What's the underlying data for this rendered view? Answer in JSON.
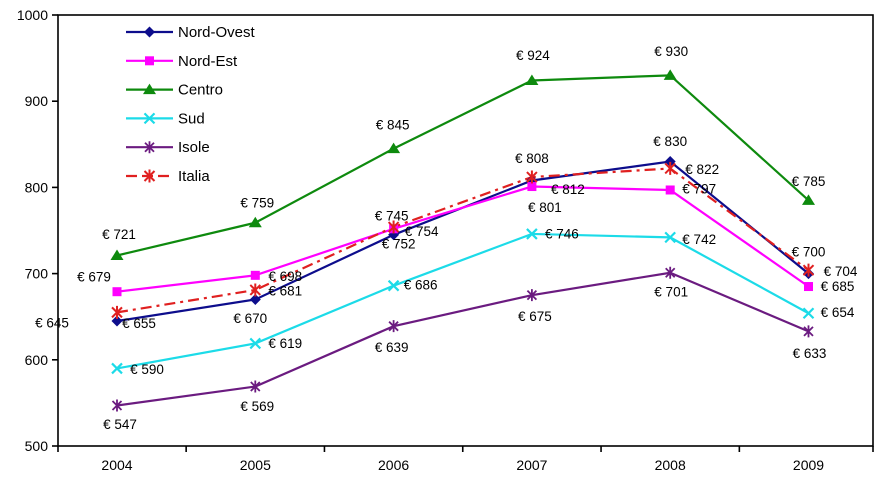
{
  "chart_data": {
    "type": "line",
    "title": "",
    "currency_prefix": "€ ",
    "categories": [
      "2004",
      "2005",
      "2006",
      "2007",
      "2008",
      "2009"
    ],
    "ylim": [
      500,
      1000
    ],
    "yticks": [
      500,
      600,
      700,
      800,
      900,
      1000
    ],
    "grid": false,
    "background": "#ffffff",
    "axis_color": "#000000",
    "legend": {
      "position": "top-left",
      "border": false
    },
    "series": [
      {
        "name": "Nord-Ovest",
        "color": "#0d0d8c",
        "marker": "diamond",
        "line_style": "solid",
        "values": [
          645,
          670,
          745,
          808,
          830,
          700
        ],
        "label_offsets": [
          [
            -65,
            2
          ],
          [
            -5,
            19
          ],
          [
            -2,
            -19
          ],
          [
            0,
            -22
          ],
          [
            0,
            -20
          ],
          [
            0,
            -22
          ]
        ]
      },
      {
        "name": "Nord-Est",
        "color": "#ff00ff",
        "marker": "square",
        "line_style": "solid",
        "values": [
          679,
          698,
          752,
          801,
          797,
          685
        ],
        "label_offsets": [
          [
            -23,
            -15
          ],
          [
            30,
            1
          ],
          [
            5,
            15
          ],
          [
            13,
            21
          ],
          [
            29,
            -1
          ],
          [
            29,
            0
          ]
        ]
      },
      {
        "name": "Centro",
        "color": "#0e8a0e",
        "marker": "triangle",
        "line_style": "solid",
        "values": [
          721,
          759,
          845,
          924,
          930,
          785
        ],
        "label_offsets": [
          [
            2,
            -21
          ],
          [
            2,
            -20
          ],
          [
            -1,
            -24
          ],
          [
            1,
            -25
          ],
          [
            1,
            -24
          ],
          [
            0,
            -19
          ]
        ]
      },
      {
        "name": "Sud",
        "color": "#1cdbe8",
        "marker": "xmark",
        "line_style": "solid",
        "values": [
          590,
          619,
          686,
          746,
          742,
          654
        ],
        "label_offsets": [
          [
            30,
            1
          ],
          [
            30,
            0
          ],
          [
            27,
            -1
          ],
          [
            30,
            0
          ],
          [
            29,
            2
          ],
          [
            29,
            -1
          ]
        ]
      },
      {
        "name": "Isole",
        "color": "#6b1b80",
        "marker": "star6",
        "line_style": "solid",
        "values": [
          547,
          569,
          639,
          675,
          701,
          633
        ],
        "label_offsets": [
          [
            3,
            19
          ],
          [
            2,
            20
          ],
          [
            -2,
            21
          ],
          [
            3,
            21
          ],
          [
            1,
            19
          ],
          [
            1,
            22
          ]
        ]
      },
      {
        "name": "Italia",
        "color": "#e02020",
        "marker": "star6",
        "line_style": "dashed",
        "values": [
          655,
          681,
          754,
          812,
          822,
          704
        ],
        "label_offsets": [
          [
            22,
            11
          ],
          [
            30,
            1
          ],
          [
            28,
            4
          ],
          [
            36,
            12
          ],
          [
            32,
            1
          ],
          [
            32,
            1
          ]
        ]
      }
    ]
  }
}
